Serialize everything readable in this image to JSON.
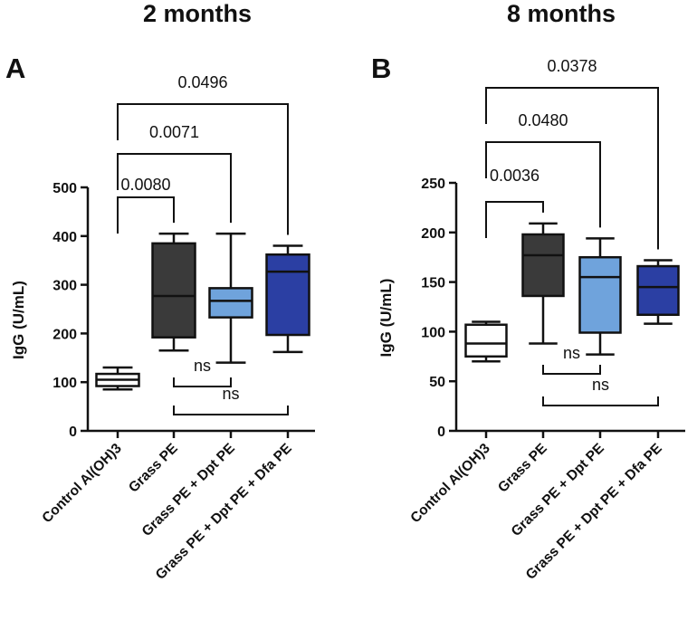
{
  "chart_data": [
    {
      "type": "box",
      "panel": "A",
      "title": "2 months",
      "ylabel": "IgG (U/mL)",
      "ylim": [
        0,
        500
      ],
      "yticks": [
        "0",
        "100",
        "200",
        "300",
        "400",
        "500"
      ],
      "categories": [
        "Control Al(OH)3",
        "Grass PE",
        "Grass PE + Dpt PE",
        "Grass PE + Dpt PE + Dfa PE"
      ],
      "colors": [
        "#ffffff",
        "#3a3a3a",
        "#6fa3dc",
        "#2b3fa3"
      ],
      "boxes": [
        {
          "min": 85,
          "q1": 92,
          "median": 105,
          "q3": 117,
          "max": 130
        },
        {
          "min": 165,
          "q1": 192,
          "median": 277,
          "q3": 385,
          "max": 405
        },
        {
          "min": 140,
          "q1": 233,
          "median": 267,
          "q3": 293,
          "max": 405
        },
        {
          "min": 162,
          "q1": 197,
          "median": 327,
          "q3": 362,
          "max": 380
        }
      ],
      "comparisons_top": [
        {
          "from": 0,
          "to": 1,
          "label": "0.0080"
        },
        {
          "from": 0,
          "to": 2,
          "label": "0.0071"
        },
        {
          "from": 0,
          "to": 3,
          "label": "0.0496"
        }
      ],
      "comparisons_bottom": [
        {
          "from": 1,
          "to": 2,
          "label": "ns"
        },
        {
          "from": 1,
          "to": 3,
          "label": "ns"
        }
      ]
    },
    {
      "type": "box",
      "panel": "B",
      "title": "8 months",
      "ylabel": "IgG (U/mL)",
      "ylim": [
        0,
        250
      ],
      "yticks": [
        "0",
        "50",
        "100",
        "150",
        "200",
        "250"
      ],
      "categories": [
        "Control Al(OH)3",
        "Grass PE",
        "Grass PE + Dpt PE",
        "Grass PE + Dpt PE + Dfa PE"
      ],
      "colors": [
        "#ffffff",
        "#3a3a3a",
        "#6fa3dc",
        "#2b3fa3"
      ],
      "boxes": [
        {
          "min": 70,
          "q1": 75,
          "median": 88,
          "q3": 107,
          "max": 110
        },
        {
          "min": 88,
          "q1": 136,
          "median": 177,
          "q3": 198,
          "max": 209
        },
        {
          "min": 77,
          "q1": 99,
          "median": 155,
          "q3": 175,
          "max": 194
        },
        {
          "min": 108,
          "q1": 117,
          "median": 145,
          "q3": 166,
          "max": 172
        }
      ],
      "comparisons_top": [
        {
          "from": 0,
          "to": 1,
          "label": "0.0036"
        },
        {
          "from": 0,
          "to": 2,
          "label": "0.0480"
        },
        {
          "from": 0,
          "to": 3,
          "label": "0.0378"
        }
      ],
      "comparisons_bottom": [
        {
          "from": 1,
          "to": 2,
          "label": "ns"
        },
        {
          "from": 1,
          "to": 3,
          "label": "ns"
        }
      ]
    }
  ]
}
